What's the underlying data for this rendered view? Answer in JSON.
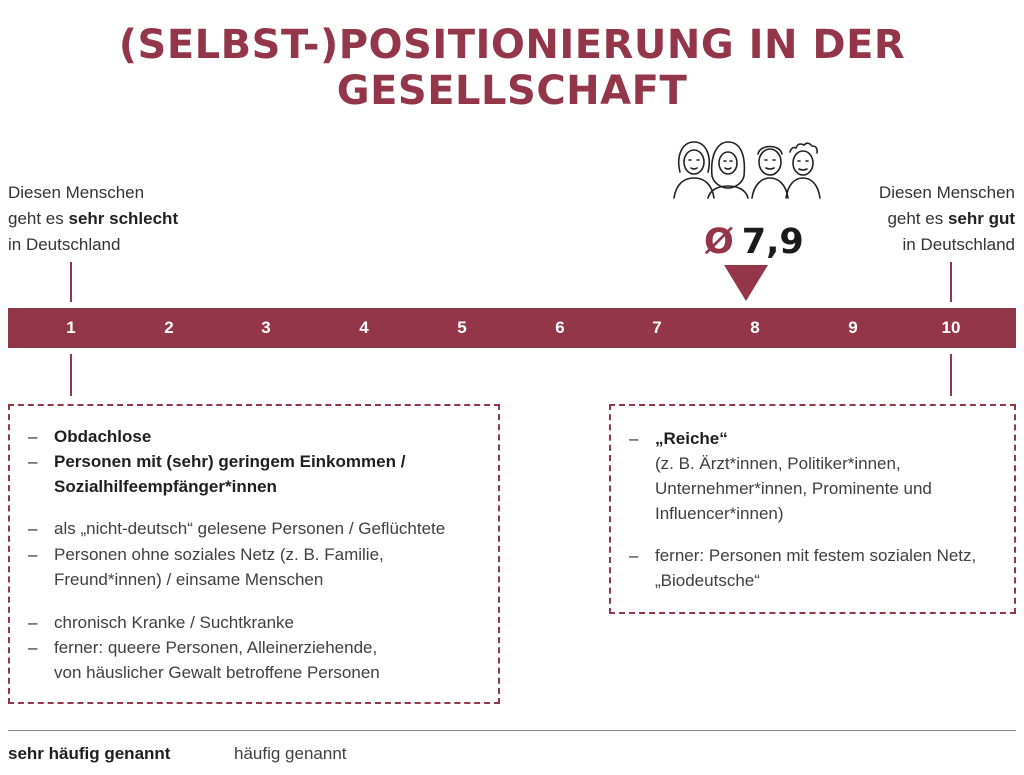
{
  "title": "(SELBST-)POSITIONIERUNG IN DER GESELLSCHAFT",
  "left_end": {
    "line1": "Diesen Menschen",
    "line2_pre": "geht es ",
    "line2_bold": "sehr schlecht",
    "line3": "in Deutschland"
  },
  "right_end": {
    "line1": "Diesen Menschen",
    "line2_pre": "geht es ",
    "line2_bold": "sehr gut",
    "line3": "in Deutschland"
  },
  "scale": {
    "min": 1,
    "max": 10,
    "ticks": [
      "1",
      "2",
      "3",
      "4",
      "5",
      "6",
      "7",
      "8",
      "9",
      "10"
    ]
  },
  "average": {
    "symbol": "Ø",
    "value": "7,9",
    "position": 7.9,
    "marker_at": 8
  },
  "left_box": {
    "items": [
      {
        "dash": "–",
        "text": "Obdachlose",
        "style": "strong"
      },
      {
        "dash": "–",
        "text": "Personen mit (sehr) geringem Einkommen /",
        "style": "strong"
      },
      {
        "dash": "",
        "text": "Sozialhilfeempfänger*innen",
        "style": "strong"
      },
      {
        "dash": "–",
        "text": "als „nicht-deutsch“ gelesene Personen / Geflüchtete",
        "style": "normal"
      },
      {
        "dash": "–",
        "text": "Personen ohne soziales Netz (z. B. Familie,",
        "style": "normal"
      },
      {
        "dash": "",
        "text": "Freund*innen) / einsame Menschen",
        "style": "normal"
      },
      {
        "dash": "–",
        "text": "chronisch Kranke / Suchtkranke",
        "style": "normal"
      },
      {
        "dash": "–",
        "text": "ferner: queere Personen, Alleinerziehende,",
        "style": "normal"
      },
      {
        "dash": "",
        "text": "von häuslicher Gewalt betroffene Personen",
        "style": "normal"
      }
    ]
  },
  "right_box": {
    "items": [
      {
        "dash": "–",
        "text": "„Reiche“",
        "style": "strong"
      },
      {
        "dash": "",
        "text": "(z. B. Ärzt*innen, Politiker*innen,",
        "style": "normal"
      },
      {
        "dash": "",
        "text": "Unternehmer*innen, Prominente und",
        "style": "normal"
      },
      {
        "dash": "",
        "text": "Influencer*innen)",
        "style": "normal"
      },
      {
        "dash": "–",
        "text": "ferner: Personen mit festem sozialen Netz,",
        "style": "normal"
      },
      {
        "dash": "",
        "text": "„Biodeutsche“",
        "style": "normal"
      }
    ]
  },
  "legend": {
    "strong_label": "sehr häufig genannt",
    "normal_label": "häufig genannt"
  },
  "icons": {
    "people": "group-of-four-people-icon"
  },
  "colors": {
    "accent": "#94364a",
    "text": "#2b2b2b"
  }
}
